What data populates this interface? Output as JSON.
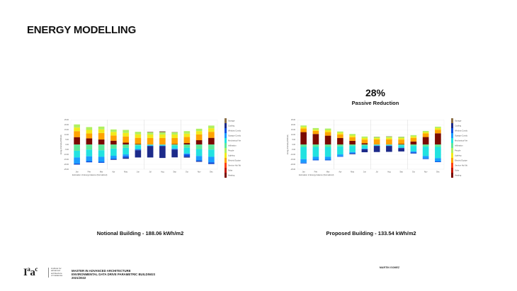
{
  "slide": {
    "title": "ENERGY MODELLING",
    "reduction_value": "28%",
    "reduction_label": "Passive Reduction",
    "notional_caption": "Notional Building - 188.06 kWh/m2",
    "proposed_caption": "Proposed Building - 133.54 kWh/m2",
    "author": "MARTIN GOMEZ"
  },
  "footer": {
    "logo_text": "Iaac",
    "institute_lines": [
      "institute for",
      "advanced",
      "architecture",
      "of Catalonia"
    ],
    "course_lines": [
      "MASTER IN ADVANCED ARCHITECTURE",
      "ENVIRONMENTAL DATA DRIVE PARAMETRIC BUILDINGS",
      "2021/2022"
    ]
  },
  "chart_data": [
    {
      "type": "bar",
      "stacked": true,
      "xlabel": "Estimation of Energy balance (Normalized)",
      "ylabel": "Energy Intensity (kWh/m2)",
      "ylim": [
        -25,
        25
      ],
      "yticks": [
        "25.00",
        "20.00",
        "15.00",
        "10.00",
        "5.00",
        "0.00",
        "-5.00",
        "-10.00",
        "-15.00",
        "-20.00",
        "-25.00"
      ],
      "grid": true,
      "legend": "right",
      "categories": [
        "Jan",
        "Feb",
        "Mar",
        "Apr",
        "May",
        "Jun",
        "Jul",
        "Aug",
        "Sep",
        "Oct",
        "Nov",
        "Dec"
      ],
      "series": [
        {
          "name": "Heating",
          "color": "#7a0a00",
          "values": [
            7.5,
            6.3,
            5.1,
            3.9,
            1.9,
            0.7,
            0.3,
            0.3,
            0.5,
            1.5,
            4.4,
            6.8
          ]
        },
        {
          "name": "Solar",
          "color": "#c21800",
          "values": [
            0,
            0,
            0,
            0,
            0,
            0,
            0,
            0,
            0,
            0,
            0,
            0
          ]
        },
        {
          "name": "Service Hot Water",
          "color": "#ff4010",
          "values": [
            0,
            0,
            0,
            0,
            0,
            0,
            0,
            0,
            0,
            0,
            0,
            0
          ]
        },
        {
          "name": "Electric Equipment",
          "color": "#ffa300",
          "values": [
            6.1,
            4.9,
            6.6,
            5.3,
            6.3,
            6.1,
            6.3,
            6.3,
            6.1,
            6.1,
            5.8,
            6.1
          ]
        },
        {
          "name": "Lighting",
          "color": "#f2ea1a",
          "values": [
            3.6,
            3.6,
            3.6,
            3.6,
            3.6,
            3.6,
            3.6,
            3.6,
            3.6,
            3.4,
            3.4,
            3.6
          ]
        },
        {
          "name": "People",
          "color": "#b0f060",
          "values": [
            3.2,
            2.9,
            2.9,
            2.5,
            3.0,
            2.5,
            2.2,
            2.2,
            2.2,
            2.6,
            2.4,
            2.7
          ]
        },
        {
          "name": "Infiltration",
          "color": "#5ee89a",
          "values": [
            -6.3,
            -5.1,
            -5.8,
            -4.1,
            -3.4,
            -1.0,
            -0.5,
            -0.5,
            -1.0,
            -3.2,
            -4.6,
            -5.1
          ]
        },
        {
          "name": "Mechanical Ventilation",
          "color": "#22e2e0",
          "values": [
            -6.8,
            -6.8,
            -6.6,
            -7.3,
            -6.6,
            -3.6,
            -0.5,
            -0.5,
            -3.0,
            -5.8,
            -7.0,
            -7.3
          ]
        },
        {
          "name": "Opaque Conduction",
          "color": "#1a9cff",
          "values": [
            -6.1,
            -4.9,
            -5.1,
            -2.9,
            -1.9,
            -0.7,
            -0.3,
            -0.3,
            -0.7,
            -1.0,
            -4.4,
            -5.6
          ]
        },
        {
          "name": "Window Conduction",
          "color": "#0a4fe0",
          "values": [
            -1.0,
            -1.2,
            -1.0,
            -0.7,
            -1.5,
            -0.5,
            -0.3,
            -0.3,
            -0.5,
            -2.2,
            -1.0,
            -1.5
          ]
        },
        {
          "name": "Cooling",
          "color": "#1c2a8a",
          "values": [
            -0.2,
            0,
            0,
            -0.5,
            -1.0,
            -7.3,
            -11.5,
            -12.0,
            -7.8,
            -1.0,
            -0.5,
            -0.3
          ]
        },
        {
          "name": "Storage",
          "color": "#8c7048",
          "values": [
            0,
            0,
            0,
            0,
            0,
            0,
            0.5,
            1.0,
            0.3,
            0,
            0,
            0
          ]
        }
      ]
    },
    {
      "type": "bar",
      "stacked": true,
      "xlabel": "Estimation of Energy balance (Normalized)",
      "ylabel": "Energy Intensity (kWh/m2)",
      "ylim": [
        -25,
        25
      ],
      "yticks": [
        "25.00",
        "20.00",
        "15.00",
        "10.00",
        "5.00",
        "0.00",
        "-5.00",
        "-10.00",
        "-15.00",
        "-20.00",
        "-25.00"
      ],
      "grid": true,
      "legend": "right",
      "categories": [
        "Jan",
        "Feb",
        "Mar",
        "Apr",
        "May",
        "Jun",
        "Jul",
        "Aug",
        "Sep",
        "Oct",
        "Nov",
        "Dec"
      ],
      "series": [
        {
          "name": "Heating",
          "color": "#7a0a00",
          "values": [
            12.6,
            10.7,
            9.0,
            6.7,
            3.8,
            1.4,
            0.3,
            0.3,
            0.7,
            3.1,
            7.6,
            11.4
          ]
        },
        {
          "name": "Solar",
          "color": "#c21800",
          "values": [
            0,
            0,
            0,
            0,
            0,
            0,
            0,
            0,
            0,
            0,
            0,
            0
          ]
        },
        {
          "name": "Service Hot Water",
          "color": "#ff4010",
          "values": [
            0,
            0,
            0,
            0,
            0,
            0,
            0,
            0,
            0,
            0,
            0,
            0
          ]
        },
        {
          "name": "Electric Equipment",
          "color": "#ffa300",
          "values": [
            3.6,
            3.1,
            3.6,
            3.6,
            3.6,
            3.6,
            4.8,
            5.0,
            4.3,
            3.6,
            3.6,
            3.6
          ]
        },
        {
          "name": "Lighting",
          "color": "#f2ea1a",
          "values": [
            1.7,
            1.2,
            1.9,
            1.7,
            1.7,
            1.7,
            1.4,
            1.5,
            1.5,
            1.5,
            1.4,
            1.7
          ]
        },
        {
          "name": "People",
          "color": "#b0f060",
          "values": [
            1.4,
            1.7,
            1.7,
            1.2,
            1.6,
            1.4,
            1.2,
            1.2,
            1.2,
            1.3,
            1.2,
            1.4
          ]
        },
        {
          "name": "Infiltration",
          "color": "#5ee89a",
          "values": [
            -2.4,
            -2.4,
            -2.4,
            -1.9,
            -1.4,
            -1.0,
            -0.5,
            -0.5,
            -0.7,
            -1.4,
            -2.1,
            -2.4
          ]
        },
        {
          "name": "Mechanical Ventilation",
          "color": "#22e2e0",
          "values": [
            -12.4,
            -10.0,
            -10.0,
            -8.1,
            -6.2,
            -3.1,
            -0.5,
            -0.5,
            -2.4,
            -5.5,
            -9.5,
            -11.4
          ]
        },
        {
          "name": "Opaque Conduction",
          "color": "#1a9cff",
          "values": [
            -3.6,
            -2.9,
            -2.9,
            -1.9,
            -1.2,
            -0.5,
            -0.2,
            -0.2,
            -0.3,
            -1.0,
            -2.4,
            -3.3
          ]
        },
        {
          "name": "Window Conduction",
          "color": "#0a4fe0",
          "values": [
            -0.7,
            -0.7,
            -0.7,
            -0.5,
            -0.5,
            -0.3,
            -0.2,
            -0.2,
            -0.3,
            -1.0,
            -0.7,
            -0.7
          ]
        },
        {
          "name": "Cooling",
          "color": "#1c2a8a",
          "values": [
            0,
            0,
            0,
            0,
            -0.5,
            -2.9,
            -6.2,
            -6.0,
            -3.3,
            -0.2,
            0,
            0
          ]
        },
        {
          "name": "Storage",
          "color": "#8c7048",
          "values": [
            0,
            0,
            0,
            0,
            0,
            0,
            0.2,
            0.3,
            0.2,
            0,
            0,
            0
          ]
        }
      ]
    }
  ]
}
